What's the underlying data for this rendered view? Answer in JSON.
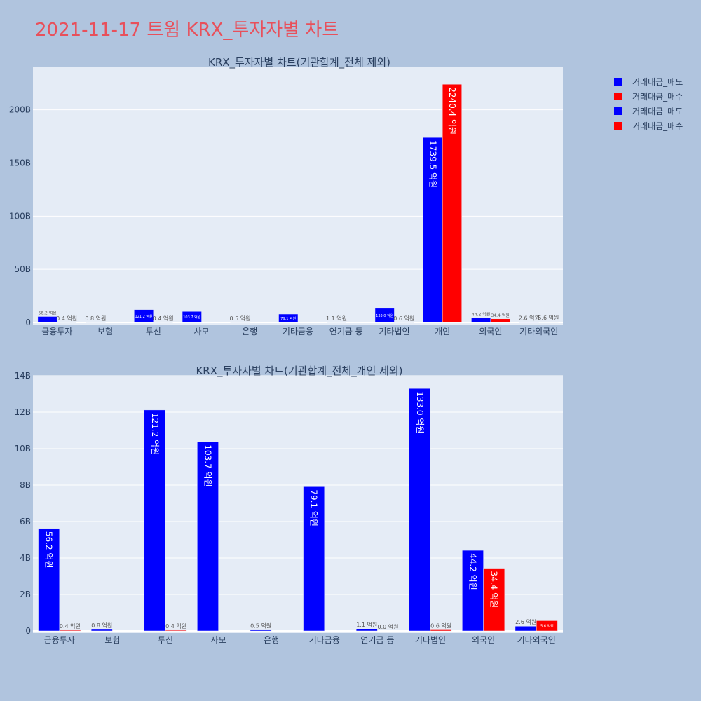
{
  "page": {
    "title": "2021-11-17 트윔 KRX_투자자별 차트"
  },
  "colors": {
    "sell": "#0000ff",
    "buy": "#ff0000",
    "plot_bg": "#e5ecf6",
    "grid": "#ffffff",
    "text": "#2a3f5f"
  },
  "legend": {
    "items": [
      {
        "label": "거래대금_매도",
        "color": "#0000ff"
      },
      {
        "label": "거래대금_매수",
        "color": "#ff0000"
      },
      {
        "label": "거래대금_매도",
        "color": "#0000ff"
      },
      {
        "label": "거래대금_매수",
        "color": "#ff0000"
      }
    ]
  },
  "chart_data": [
    {
      "type": "bar",
      "title": "KRX_투자자별 차트(기관합계_전체 제외)",
      "categories": [
        "금융투자",
        "보험",
        "투신",
        "사모",
        "은행",
        "기타금융",
        "연기금 등",
        "기타법인",
        "개인",
        "외국인",
        "기타외국인"
      ],
      "ylim": [
        0,
        240
      ],
      "yticks": [
        0,
        50,
        100,
        150,
        200
      ],
      "ytick_labels": [
        "0",
        "50B",
        "100B",
        "150B",
        "200B"
      ],
      "series": [
        {
          "name": "거래대금_매도",
          "values": [
            5.62,
            0.08,
            12.12,
            10.37,
            0.05,
            7.91,
            0.11,
            13.3,
            173.95,
            4.42,
            0.26
          ],
          "labels": [
            "56.2 억원",
            "0.8 억원",
            "121.2 억원",
            "103.7 억원",
            "0.5 억원",
            "79.1 억원",
            "1.1 억원",
            "133.0 억원",
            "1739.5 억원",
            "44.2 억원",
            "2.6 억원"
          ]
        },
        {
          "name": "거래대금_매수",
          "values": [
            0.04,
            0,
            0.04,
            0,
            0,
            0,
            0,
            0.06,
            224.04,
            3.44,
            0.56
          ],
          "labels": [
            "0.4 억원",
            "",
            "0.4 억원",
            "",
            "",
            "",
            "",
            "0.6 억원",
            "2240.4 억원",
            "34.4 억원",
            "5.6 억원"
          ]
        }
      ]
    },
    {
      "type": "bar",
      "title": "KRX_투자자별 차트(기관합계_전체_개인 제외)",
      "categories": [
        "금융투자",
        "보험",
        "투신",
        "사모",
        "은행",
        "기타금융",
        "연기금 등",
        "기타법인",
        "외국인",
        "기타외국인"
      ],
      "ylim": [
        0,
        14
      ],
      "yticks": [
        0,
        2,
        4,
        6,
        8,
        10,
        12,
        14
      ],
      "ytick_labels": [
        "0",
        "2B",
        "4B",
        "6B",
        "8B",
        "10B",
        "12B",
        "14B"
      ],
      "series": [
        {
          "name": "거래대금_매도",
          "values": [
            5.62,
            0.08,
            12.12,
            10.37,
            0.05,
            7.91,
            0.11,
            13.3,
            4.42,
            0.26
          ],
          "labels": [
            "56.2 억원",
            "0.8 억원",
            "121.2 억원",
            "103.7 억원",
            "0.5 억원",
            "79.1 억원",
            "1.1 억원",
            "133.0 억원",
            "44.2 억원",
            "2.6 억원"
          ]
        },
        {
          "name": "거래대금_매수",
          "values": [
            0.04,
            0,
            0.04,
            0,
            0,
            0,
            0,
            0.06,
            3.44,
            0.56
          ],
          "labels": [
            "0.4 억원",
            "",
            "0.4 억원",
            "",
            "",
            "",
            "0.0 억원",
            "0.6 억원",
            "34.4 억원",
            "5.6 억원"
          ]
        }
      ]
    }
  ]
}
